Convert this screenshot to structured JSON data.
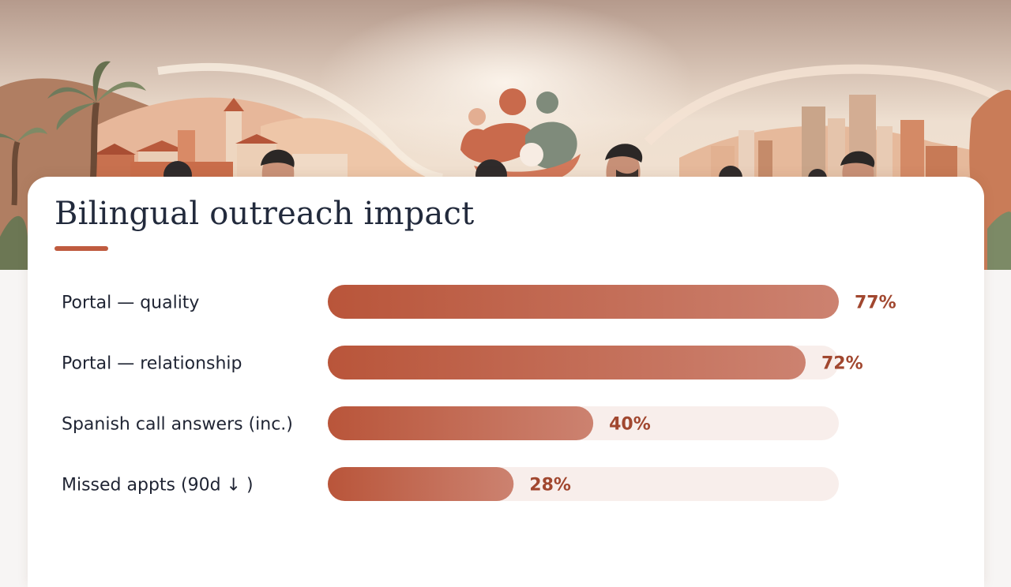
{
  "colors": {
    "bar_start": "#b9553a",
    "bar_end": "#cc8270",
    "track": "#f8eeeb",
    "value_text": "#a1472f",
    "title_accent": "#bf5b3f"
  },
  "hero": {
    "illustration": "community-banner-illustration"
  },
  "chart_data": {
    "type": "bar",
    "orientation": "horizontal",
    "title": "Bilingual outreach impact",
    "categories": [
      "Portal — quality",
      "Portal — relationship",
      "Spanish call answers (inc.)",
      "Missed appts (90d ↓ )"
    ],
    "values": [
      77,
      72,
      40,
      28
    ],
    "value_labels": [
      "77%",
      "72%",
      "40%",
      "28%"
    ],
    "unit": "%",
    "xlim": [
      0,
      77
    ],
    "grid": false,
    "legend": "none"
  }
}
